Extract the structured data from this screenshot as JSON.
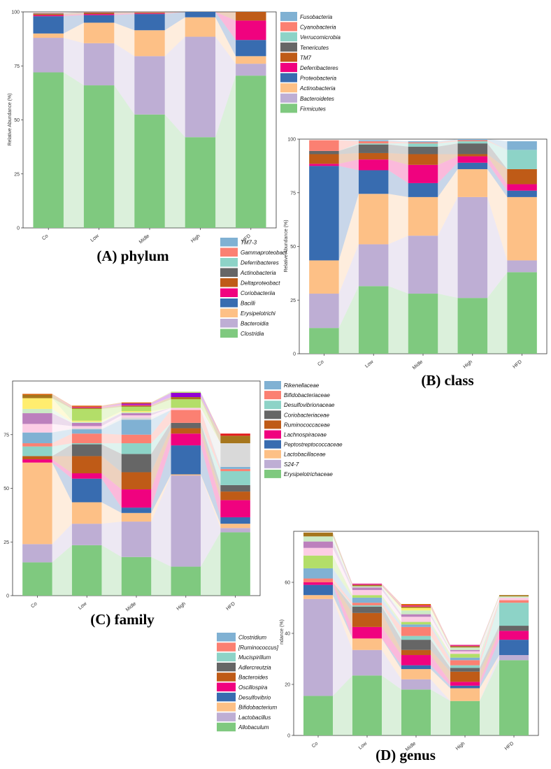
{
  "colors": {
    "Firmicutes": "#7fc97f",
    "Bacteroidetes": "#beaed4",
    "Actinobacteria": "#fdc086",
    "Proteobacteria": "#386cb0",
    "Deferribacteres": "#f0027f",
    "TM7": "#bf5b17",
    "Tenericutes": "#666666",
    "Verrucomicrobia": "#8dd3c7",
    "Cyanobacteria": "#fb8072",
    "Fusobacteria": "#80b1d3"
  },
  "chart_data": [
    {
      "id": "phylum",
      "type": "bar",
      "caption": "(A) phylum",
      "ylabel": "Relative Abundance (%)",
      "ylim": [
        0,
        100
      ],
      "yticks": [
        0,
        25,
        50,
        75,
        100
      ],
      "categories": [
        "Co",
        "Low",
        "Midle",
        "High",
        "HFD"
      ],
      "series": [
        {
          "name": "Firmicutes",
          "color": "#7fc97f",
          "values": [
            72,
            66,
            52.5,
            42,
            70.5
          ]
        },
        {
          "name": "Bacteroidetes",
          "color": "#beaed4",
          "values": [
            16,
            19.5,
            27,
            46.5,
            5.5
          ]
        },
        {
          "name": "Actinobacteria",
          "color": "#fdc086",
          "values": [
            2,
            9.5,
            12,
            9,
            3.5
          ]
        },
        {
          "name": "Proteobacteria",
          "color": "#386cb0",
          "values": [
            8,
            3.5,
            7.5,
            2.5,
            7.5
          ]
        },
        {
          "name": "Deferribacteres",
          "color": "#f0027f",
          "values": [
            0.5,
            0.5,
            0.3,
            0,
            9
          ]
        },
        {
          "name": "TM7",
          "color": "#bf5b17",
          "values": [
            0.5,
            0.5,
            0.3,
            0,
            4
          ]
        },
        {
          "name": "Tenericutes",
          "color": "#666666",
          "values": [
            0.3,
            0.3,
            0.2,
            0,
            0
          ]
        },
        {
          "name": "Verrucomicrobia",
          "color": "#8dd3c7",
          "values": [
            0,
            0,
            0,
            0,
            0
          ]
        },
        {
          "name": "Cyanobacteria",
          "color": "#fb8072",
          "values": [
            0.2,
            0.2,
            0.2,
            0,
            0
          ]
        },
        {
          "name": "Fusobacteria",
          "color": "#80b1d3",
          "values": [
            0,
            0,
            0,
            0,
            0
          ]
        }
      ],
      "legend_order": [
        "Fusobacteria",
        "Cyanobacteria",
        "Verrucomicrobia",
        "Tenericutes",
        "TM7",
        "Deferribacteres",
        "Proteobacteria",
        "Actinobacteria",
        "Bacteroidetes",
        "Firmicutes"
      ]
    },
    {
      "id": "class",
      "type": "bar",
      "caption": "(B) class",
      "ylabel": "Relative Abundance (%)",
      "ylim": [
        0,
        100
      ],
      "yticks": [
        0,
        25,
        50,
        75,
        100
      ],
      "categories": [
        "Co",
        "Low",
        "Midle",
        "High",
        "HFD"
      ],
      "series": [
        {
          "name": "Clostridia",
          "color": "#7fc97f",
          "values": [
            12,
            31.5,
            28,
            26,
            38
          ]
        },
        {
          "name": "Bacteroidia",
          "color": "#beaed4",
          "values": [
            16,
            19.5,
            27,
            47,
            5.5
          ]
        },
        {
          "name": "Erysipelotrichi",
          "color": "#fdc086",
          "values": [
            15.5,
            23.5,
            18,
            13,
            29.5
          ]
        },
        {
          "name": "Bacilli",
          "color": "#386cb0",
          "values": [
            44,
            11,
            6.5,
            3,
            3
          ]
        },
        {
          "name": "Coriobacteriia",
          "color": "#f0027f",
          "values": [
            1,
            5,
            8.5,
            3,
            3
          ]
        },
        {
          "name": "Deltaproteobacteria",
          "color": "#bf5b17",
          "values": [
            4.5,
            3,
            5,
            1,
            7
          ]
        },
        {
          "name": "Actinobacteria",
          "color": "#666666",
          "values": [
            1.5,
            4,
            3.5,
            5,
            0
          ]
        },
        {
          "name": "Deferribacteres",
          "color": "#8dd3c7",
          "values": [
            0,
            0.5,
            1.5,
            1,
            9
          ]
        },
        {
          "name": "Gammaproteobacteria",
          "color": "#fb8072",
          "values": [
            5,
            1,
            0.5,
            0.5,
            0
          ]
        },
        {
          "name": "TM7-3",
          "color": "#80b1d3",
          "values": [
            0,
            0.5,
            0.5,
            0.5,
            4
          ]
        }
      ],
      "legend_order": [
        "TM7-3",
        "Gammaproteobacteria",
        "Deferribacteres",
        "Actinobacteria",
        "Deltaproteobacteria",
        "Coriobacteriia",
        "Bacilli",
        "Erysipelotrichi",
        "Bacteroidia",
        "Clostridia"
      ]
    },
    {
      "id": "family",
      "type": "bar",
      "caption": "(C) family",
      "ylabel": "",
      "ylim": [
        0,
        100
      ],
      "yticks": [
        0,
        25,
        50,
        75
      ],
      "categories": [
        "Co",
        "Low",
        "Midle",
        "High",
        "HFD"
      ],
      "series": [
        {
          "name": "Erysipelotrichaceae",
          "color": "#7fc97f",
          "values": [
            15.5,
            23.5,
            18,
            13.5,
            29.5
          ]
        },
        {
          "name": "S24-7",
          "color": "#beaed4",
          "values": [
            8.5,
            10,
            16.5,
            42.5,
            2
          ]
        },
        {
          "name": "Lactobacillaceae",
          "color": "#fdc086",
          "values": [
            38,
            10,
            4,
            0.5,
            2
          ]
        },
        {
          "name": "Peptostreptococcaceae",
          "color": "#386cb0",
          "values": [
            0,
            11,
            2.5,
            13.5,
            3
          ]
        },
        {
          "name": "Lachnospiraceae",
          "color": "#f0027f",
          "values": [
            1.5,
            2.5,
            8.5,
            5.5,
            8
          ]
        },
        {
          "name": "Ruminococcaceae",
          "color": "#bf5b17",
          "values": [
            1.5,
            8,
            8,
            2.5,
            4
          ]
        },
        {
          "name": "Coriobacteriaceae",
          "color": "#666666",
          "values": [
            0,
            5.5,
            8.5,
            2.5,
            3
          ]
        },
        {
          "name": "Desulfovibrionaceae",
          "color": "#8dd3c7",
          "values": [
            4.5,
            0.5,
            5,
            0,
            6.5
          ]
        },
        {
          "name": "Bifidobacteriaceae",
          "color": "#fb8072",
          "values": [
            1.5,
            4.5,
            4,
            6,
            1
          ]
        },
        {
          "name": "Rikenellaceae",
          "color": "#80b1d3",
          "values": [
            5,
            2,
            7,
            0,
            1
          ]
        }
      ],
      "extra_layers": [
        {
          "color": "#d9d9d9",
          "values": [
            0,
            0.5,
            1,
            0,
            11
          ]
        },
        {
          "color": "#fccde5",
          "values": [
            4,
            1,
            1,
            1,
            0
          ]
        },
        {
          "color": "#bc80bd",
          "values": [
            5,
            1.5,
            1,
            0,
            0
          ]
        },
        {
          "color": "#ccebc5",
          "values": [
            2,
            0.5,
            0.5,
            0,
            0
          ]
        },
        {
          "color": "#ffed6f",
          "values": [
            5,
            0.5,
            0.5,
            0,
            0
          ]
        },
        {
          "color": "#b3de69",
          "values": [
            0,
            5.5,
            2,
            4,
            0
          ]
        },
        {
          "color": "#a6761d",
          "values": [
            1.5,
            0.5,
            0.5,
            1,
            3.5
          ]
        },
        {
          "color": "#e7298a",
          "values": [
            0,
            0.5,
            0.5,
            0,
            0
          ]
        },
        {
          "color": "#9400d3",
          "values": [
            0,
            0,
            0.5,
            2,
            0
          ]
        },
        {
          "color": "#d95f02",
          "values": [
            0.5,
            0.5,
            0.5,
            0,
            0
          ]
        },
        {
          "color": "#e31a1c",
          "values": [
            0,
            0,
            0,
            0,
            1
          ]
        },
        {
          "color": "#b3de69",
          "values": [
            0,
            0,
            0,
            0.5,
            0
          ]
        }
      ],
      "legend_order": [
        "Rikenellaceae",
        "Bifidobacteriaceae",
        "Desulfovibrionaceae",
        "Coriobacteriaceae",
        "Ruminococcaceae",
        "Lachnospiraceae",
        "Peptostreptococcaceae",
        "Lactobacillaceae",
        "S24-7",
        "Erysipelotrichaceae"
      ]
    },
    {
      "id": "genus",
      "type": "bar",
      "caption": "(D) genus",
      "ylabel": "ndance (%)",
      "ylim": [
        0,
        80
      ],
      "yticks": [
        0,
        20,
        40,
        60
      ],
      "categories": [
        "Co",
        "Low",
        "Midle",
        "High",
        "HFD"
      ],
      "series": [
        {
          "name": "Allobaculum",
          "color": "#7fc97f",
          "values": [
            15.5,
            23.5,
            18,
            13.5,
            29.5
          ]
        },
        {
          "name": "Lactobacillus",
          "color": "#beaed4",
          "values": [
            38,
            10,
            4,
            0,
            2
          ]
        },
        {
          "name": "Bifidobacterium",
          "color": "#fdc086",
          "values": [
            1.5,
            4.5,
            4,
            5,
            0
          ]
        },
        {
          "name": "Desulfovibrio",
          "color": "#386cb0",
          "values": [
            4,
            0,
            1.5,
            1,
            6
          ]
        },
        {
          "name": "Oscillospira",
          "color": "#f0027f",
          "values": [
            1,
            4.5,
            4,
            1.5,
            3.5
          ]
        },
        {
          "name": "Bacteroides",
          "color": "#bf5b17",
          "values": [
            0,
            5.5,
            2,
            4,
            0
          ]
        },
        {
          "name": "Adlercreutzia",
          "color": "#666666",
          "values": [
            0,
            2.5,
            4,
            1.5,
            2
          ]
        },
        {
          "name": "Mucispirillum",
          "color": "#8dd3c7",
          "values": [
            0,
            0.5,
            1.5,
            1,
            9
          ]
        },
        {
          "name": "[Ruminococcus]",
          "color": "#fb8072",
          "values": [
            1.5,
            1,
            3.5,
            2,
            1
          ]
        },
        {
          "name": "Clostridium",
          "color": "#80b1d3",
          "values": [
            4,
            2,
            1,
            1,
            0
          ]
        }
      ],
      "extra_layers": [
        {
          "color": "#b3de69",
          "values": [
            5,
            1,
            1,
            1.5,
            0
          ]
        },
        {
          "color": "#fccde5",
          "values": [
            3,
            2,
            2,
            1,
            1
          ]
        },
        {
          "color": "#bc80bd",
          "values": [
            2.5,
            1,
            1,
            0.5,
            0
          ]
        },
        {
          "color": "#ccebc5",
          "values": [
            2,
            0.5,
            1.5,
            1,
            0.5
          ]
        },
        {
          "color": "#ffed6f",
          "values": [
            0,
            0,
            1,
            0,
            0
          ]
        },
        {
          "color": "#a6761d",
          "values": [
            1.5,
            0.5,
            0.5,
            0.5,
            0.5
          ]
        },
        {
          "color": "#e7298a",
          "values": [
            0,
            0.5,
            0.5,
            0.5,
            0
          ]
        },
        {
          "color": "#d95f02",
          "values": [
            0,
            0,
            0.5,
            0,
            0
          ]
        }
      ],
      "legend_order": [
        "Clostridium",
        "[Ruminococcus]",
        "Mucispirillum",
        "Adlercreutzia",
        "Bacteroides",
        "Oscillospira",
        "Desulfovibrio",
        "Bifidobacterium",
        "Lactobacillus",
        "Allobaculum"
      ]
    }
  ]
}
